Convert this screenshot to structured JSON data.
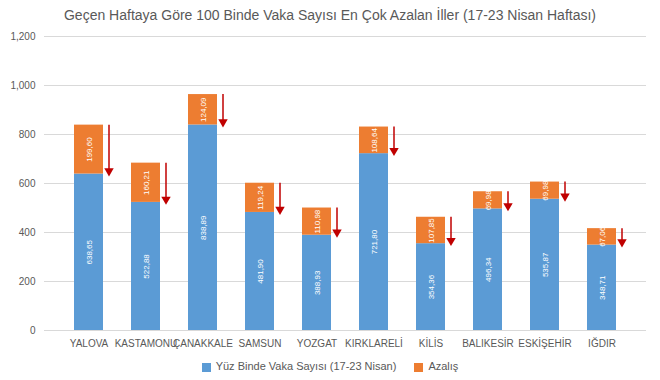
{
  "chart_data": {
    "type": "bar",
    "title": "Geçen Haftaya Göre 100 Binde Vaka Sayısı En Çok Azalan İller (17-23 Nisan Haftası)",
    "categories": [
      "YALOVA",
      "KASTAMONU",
      "ÇANAKKALE",
      "SAMSUN",
      "YOZGAT",
      "KIRKLARELİ",
      "KİLİS",
      "BALIKESİR",
      "ESKİŞEHİR",
      "IĞDIR"
    ],
    "series": [
      {
        "name": "Yüz Binde Vaka Sayısı (17-23 Nisan)",
        "color": "#5b9bd5",
        "values": [
          638.65,
          522.88,
          838.89,
          481.9,
          388.93,
          721.8,
          354.36,
          496.34,
          535.87,
          348.71
        ],
        "value_labels": [
          "638,65",
          "522,88",
          "838,89",
          "481,90",
          "388,93",
          "721,80",
          "354,36",
          "496,34",
          "535,87",
          "348,71"
        ]
      },
      {
        "name": "Azalış",
        "color": "#ed7d31",
        "values": [
          199.6,
          160.21,
          124.09,
          119.24,
          110.98,
          108.64,
          107.85,
          69.98,
          69.98,
          67.06
        ],
        "value_labels": [
          "199,60",
          "160,21",
          "124,09",
          "119,24",
          "110,98",
          "108,64",
          "107,85",
          "69,98",
          "69,98",
          "67,06"
        ]
      }
    ],
    "ylim": [
      0,
      1200
    ],
    "yticks": [
      0,
      200,
      400,
      600,
      800,
      1000,
      1200
    ],
    "grid": true,
    "stacked": true,
    "data_labels": true,
    "legend": "bottom"
  }
}
